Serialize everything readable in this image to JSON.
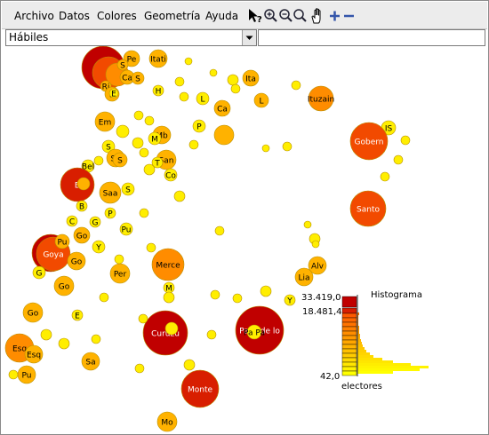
{
  "menu": [
    "Archivo",
    "Datos",
    "Colores",
    "Geometría",
    "Ayuda"
  ],
  "toolbar": {
    "tools": [
      "pointer-help-icon",
      "zoom-in-icon",
      "zoom-out-icon",
      "zoom-icon",
      "pan-hand-icon",
      "plus-icon",
      "minus-icon"
    ]
  },
  "selector": {
    "value": "Hábiles"
  },
  "search": {
    "value": ""
  },
  "legend": {
    "title": "Histograma",
    "max_label": "33.419,0",
    "mid_label": "18.481,4",
    "min_label": "42,0",
    "var_label": "electores"
  },
  "colors": {
    "circle_stroke": "#b89000",
    "low": "#ffff00",
    "mid": "#ff8800",
    "high": "#cc0000"
  },
  "map_labels": [
    "Itati",
    "Pe",
    "S",
    "Ri",
    "Ca",
    "S",
    "S",
    "E",
    "H",
    "Ita",
    "Ituzain",
    "L",
    "Ca",
    "L",
    "Em",
    "Mb",
    "P",
    "IS",
    "S",
    "M",
    "Sa",
    "Gobern",
    "S",
    "Saa",
    "San",
    "T",
    "S",
    "Co",
    "Bel",
    "B",
    "S",
    "San",
    "B",
    "Santo",
    "P",
    "G",
    "C",
    "Go",
    "Pu",
    "Goya",
    "Y",
    "Go",
    "Alv",
    "G",
    "Per",
    "Merce",
    "Lia",
    "Go",
    "M",
    "Y",
    "Curuzu",
    "Pa Pa",
    "Paso de lo",
    "Go",
    "E",
    "Esq",
    "Esq",
    "Sa",
    "Pu",
    "Monte",
    "Mo",
    "C"
  ]
}
